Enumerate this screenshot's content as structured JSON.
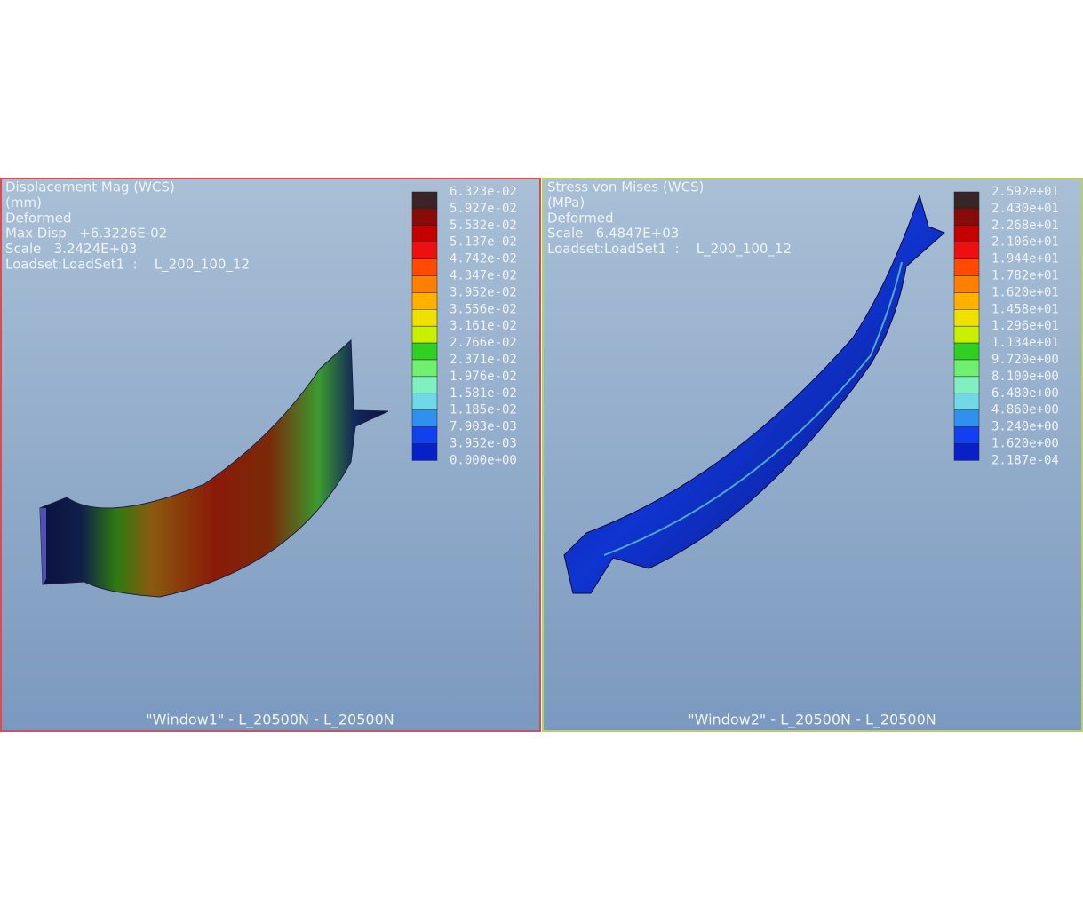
{
  "windows": [
    {
      "header": [
        "Displacement Mag (WCS)",
        "(mm)",
        "Deformed",
        "Max Disp   +6.3226E-02",
        "Scale   3.2424E+03",
        "Loadset:LoadSet1  :    L_200_100_12"
      ],
      "legend": [
        "6.323e-02",
        "5.927e-02",
        "5.532e-02",
        "5.137e-02",
        "4.742e-02",
        "4.347e-02",
        "3.952e-02",
        "3.556e-02",
        "3.161e-02",
        "2.766e-02",
        "2.371e-02",
        "1.976e-02",
        "1.581e-02",
        "1.185e-02",
        "7.903e-03",
        "3.952e-03",
        "0.000e+00"
      ],
      "caption": "\"Window1\" - L_20500N - L_20500N"
    },
    {
      "header": [
        "Stress von Mises (WCS)",
        "(MPa)",
        "Deformed",
        "Scale   6.4847E+03",
        "Loadset:LoadSet1  :    L_200_100_12"
      ],
      "legend": [
        "2.592e+01",
        "2.430e+01",
        "2.268e+01",
        "2.106e+01",
        "1.944e+01",
        "1.782e+01",
        "1.620e+01",
        "1.458e+01",
        "1.296e+01",
        "1.134e+01",
        "9.720e+00",
        "8.100e+00",
        "6.480e+00",
        "4.860e+00",
        "3.240e+00",
        "1.620e+00",
        "2.187e-04"
      ],
      "caption": "\"Window2\" - L_20500N - L_20500N"
    }
  ]
}
